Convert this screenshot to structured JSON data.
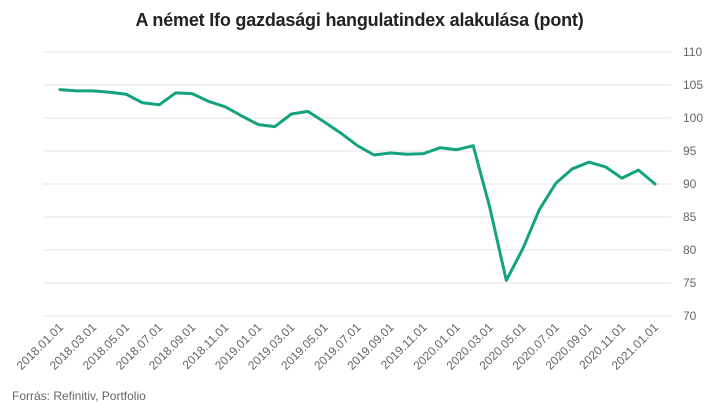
{
  "chart_data": {
    "type": "line",
    "title": "A német Ifo gazdasági hangulatindex alakulása (pont)",
    "source": "Forrás: Refinitiv, Portfolio",
    "xlabel": "",
    "ylabel": "",
    "ylim": [
      70,
      110
    ],
    "yticks": [
      70,
      75,
      80,
      85,
      90,
      95,
      100,
      105,
      110
    ],
    "y_axis_position": "right",
    "grid": true,
    "legend": "none",
    "x_tick_labels": [
      "2018.01.01",
      "2018.03.01",
      "2018.05.01",
      "2018.07.01",
      "2018.09.01",
      "2018.11.01",
      "2019.01.01",
      "2019.03.01",
      "2019.05.01",
      "2019.07.01",
      "2019.09.01",
      "2019.11.01",
      "2020.01.01",
      "2020.03.01",
      "2020.05.01",
      "2020.07.01",
      "2020.09.01",
      "2020.11.01",
      "2021.01.01"
    ],
    "x": [
      "2018.01",
      "2018.02",
      "2018.03",
      "2018.04",
      "2018.05",
      "2018.06",
      "2018.07",
      "2018.08",
      "2018.09",
      "2018.10",
      "2018.11",
      "2018.12",
      "2019.01",
      "2019.02",
      "2019.03",
      "2019.04",
      "2019.05",
      "2019.06",
      "2019.07",
      "2019.08",
      "2019.09",
      "2019.10",
      "2019.11",
      "2019.12",
      "2020.01",
      "2020.02",
      "2020.03",
      "2020.04",
      "2020.05",
      "2020.06",
      "2020.07",
      "2020.08",
      "2020.09",
      "2020.10",
      "2020.11",
      "2020.12",
      "2021.01"
    ],
    "series": [
      {
        "color": "#14a37f",
        "values": [
          104.3,
          104.1,
          104.1,
          103.9,
          103.6,
          102.3,
          102.0,
          103.8,
          103.7,
          102.5,
          101.7,
          100.3,
          99.0,
          98.7,
          100.6,
          101.0,
          99.4,
          97.7,
          95.8,
          94.4,
          94.7,
          94.5,
          94.6,
          95.5,
          95.2,
          95.8,
          86.5,
          75.4,
          80.2,
          86.1,
          90.1,
          92.3,
          93.3,
          92.6,
          90.9,
          92.1,
          90.0
        ]
      }
    ]
  }
}
